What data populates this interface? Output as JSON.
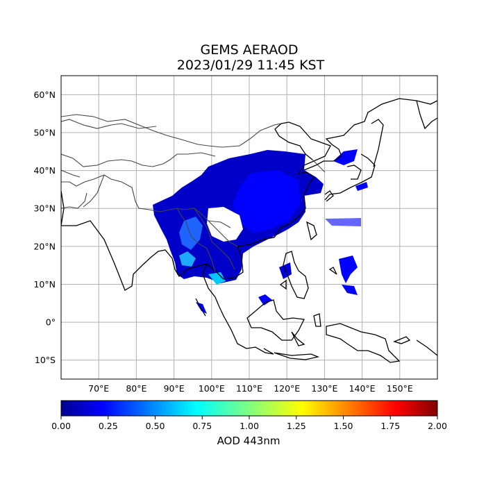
{
  "title": "GEMS AERAOD",
  "subtitle": "2023/01/29 11:45 KST",
  "map": {
    "lon_range": [
      60,
      160
    ],
    "lat_range": [
      -15,
      65
    ],
    "lon_ticks": [
      "70°E",
      "80°E",
      "90°E",
      "100°E",
      "110°E",
      "120°E",
      "130°E",
      "140°E",
      "150°E"
    ],
    "lat_ticks": [
      "60°N",
      "50°N",
      "40°N",
      "30°N",
      "20°N",
      "10°N",
      "0°",
      "10°S"
    ],
    "gridlines": true
  },
  "colorbar": {
    "label": "AOD 443nm",
    "ticks": [
      "0.00",
      "0.25",
      "0.50",
      "0.75",
      "1.00",
      "1.25",
      "1.50",
      "1.75",
      "2.00"
    ],
    "range": [
      0,
      2
    ],
    "colormap": "jet"
  },
  "colors": {
    "low": "#00008f",
    "mid_low": "#0000ff",
    "mid": "#00ffff",
    "high": "#ff0000"
  }
}
